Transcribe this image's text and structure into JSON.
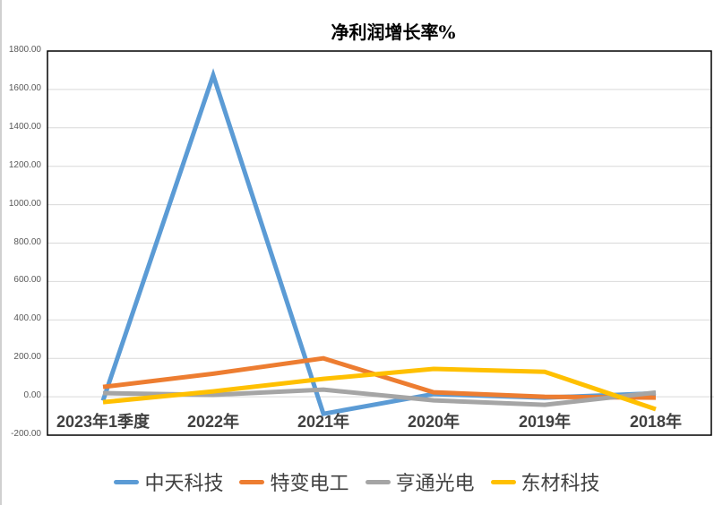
{
  "chart_data": {
    "type": "line",
    "title": "净利润增长率%",
    "xlabel": "",
    "ylabel": "",
    "ylim": [
      -200,
      1800
    ],
    "yticks": [
      "1800.00",
      "1600.00",
      "1400.00",
      "1200.00",
      "1000.00",
      "800.00",
      "600.00",
      "400.00",
      "200.00",
      "0.00",
      "-200.00"
    ],
    "grid": true,
    "legend_position": "bottom",
    "categories": [
      "2023年1季度",
      "2022年",
      "2021年",
      "2020年",
      "2019年",
      "2018年"
    ],
    "series": [
      {
        "name": "中天科技",
        "color": "#5B9BD5",
        "values": [
          -20,
          1674,
          -89,
          14,
          -5,
          18
        ]
      },
      {
        "name": "特变电工",
        "color": "#ED7D31",
        "values": [
          51,
          120,
          200,
          23,
          0,
          -5
        ]
      },
      {
        "name": "亨通光电",
        "color": "#A5A5A5",
        "values": [
          19,
          10,
          37,
          -19,
          -42,
          22
        ]
      },
      {
        "name": "东材科技",
        "color": "#FFC000",
        "values": [
          -28,
          28,
          93,
          145,
          130,
          -65
        ]
      }
    ]
  }
}
